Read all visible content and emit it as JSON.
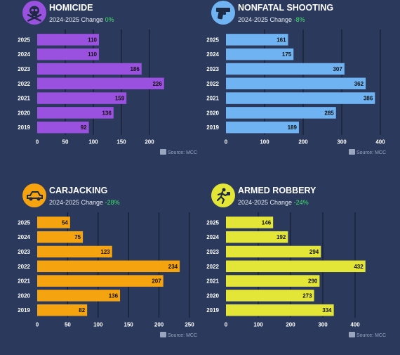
{
  "panels": [
    {
      "title": "HOMICIDE",
      "change_label": "2024-2025 Change",
      "change_value": "0%",
      "icon": "skull-crossbones-icon",
      "color": "#9b51e0",
      "source": "Source: MCC",
      "chart_data": {
        "type": "bar",
        "orientation": "horizontal",
        "categories": [
          "2025",
          "2024",
          "2023",
          "2022",
          "2021",
          "2020",
          "2019"
        ],
        "values": [
          110,
          110,
          186,
          226,
          159,
          136,
          92
        ],
        "xticks": [
          0,
          50,
          100,
          150,
          200
        ],
        "xlim": [
          0,
          250
        ]
      }
    },
    {
      "title": "NONFATAL SHOOTING",
      "change_label": "2024-2025 Change",
      "change_value": "-8%",
      "icon": "handgun-icon",
      "color": "#6fb3f2",
      "source": "Source: MCC",
      "chart_data": {
        "type": "bar",
        "orientation": "horizontal",
        "categories": [
          "2025",
          "2024",
          "2023",
          "2022",
          "2021",
          "2020",
          "2019"
        ],
        "values": [
          161,
          175,
          307,
          362,
          386,
          285,
          189
        ],
        "xticks": [
          0,
          100,
          200,
          300,
          400
        ],
        "xlim": [
          0,
          400
        ]
      }
    },
    {
      "title": "CARJACKING",
      "change_label": "2024-2025 Change",
      "change_value": "-28%",
      "icon": "car-icon",
      "color": "#f5a30f",
      "source": "Source: MCC",
      "chart_data": {
        "type": "bar",
        "orientation": "horizontal",
        "categories": [
          "2025",
          "2024",
          "2023",
          "2022",
          "2021",
          "2020",
          "2019"
        ],
        "values": [
          54,
          75,
          123,
          234,
          207,
          136,
          82
        ],
        "xticks": [
          0,
          50,
          100,
          150,
          200,
          250
        ],
        "xlim": [
          0,
          250
        ]
      }
    },
    {
      "title": "ARMED ROBBERY",
      "change_label": "2024-2025 Change",
      "change_value": "-24%",
      "icon": "running-robber-icon",
      "color": "#e4e637",
      "source": "Source: MCC",
      "chart_data": {
        "type": "bar",
        "orientation": "horizontal",
        "categories": [
          "2025",
          "2024",
          "2023",
          "2022",
          "2021",
          "2020",
          "2019"
        ],
        "values": [
          146,
          192,
          294,
          432,
          290,
          273,
          334
        ],
        "xticks": [
          0,
          100,
          200,
          300,
          400
        ],
        "xlim": [
          0,
          450
        ]
      }
    }
  ]
}
